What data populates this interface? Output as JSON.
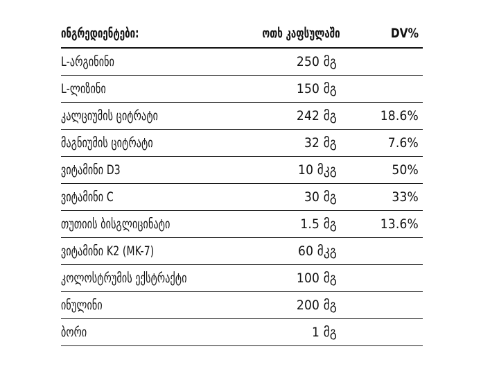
{
  "header": {
    "ingredients": "ინგრედიენტები:",
    "per_capsule": "ოთხ კაფსულაში",
    "dv": "DV%"
  },
  "rows": [
    {
      "name": "L-არგინინი",
      "amount": "250 მგ",
      "dv": ""
    },
    {
      "name": "L-ლიზინი",
      "amount": "150 მგ",
      "dv": ""
    },
    {
      "name": "კალციუმის ციტრატი",
      "amount": "242 მგ",
      "dv": "18.6%"
    },
    {
      "name": "მაგნიუმის ციტრატი",
      "amount": "32 მგ",
      "dv": "7.6%"
    },
    {
      "name": "ვიტამინი D3",
      "amount": "10 მკგ",
      "dv": "50%"
    },
    {
      "name": "ვიტამინი C",
      "amount": "30 მგ",
      "dv": "33%"
    },
    {
      "name": "თუთიის ბისგლიცინატი",
      "amount": "1.5 მგ",
      "dv": "13.6%"
    },
    {
      "name": "ვიტამინი K2 (MK-7)",
      "amount": "60 მკგ",
      "dv": ""
    },
    {
      "name": "კოლოსტრუმის ექსტრაქტი",
      "amount": "100 მგ",
      "dv": ""
    },
    {
      "name": "ინულინი",
      "amount": "200 მგ",
      "dv": ""
    },
    {
      "name": "ბორი",
      "amount": "1 მგ",
      "dv": ""
    }
  ]
}
